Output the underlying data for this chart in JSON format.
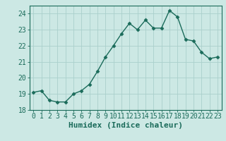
{
  "x": [
    0,
    1,
    2,
    3,
    4,
    5,
    6,
    7,
    8,
    9,
    10,
    11,
    12,
    13,
    14,
    15,
    16,
    17,
    18,
    19,
    20,
    21,
    22,
    23
  ],
  "y": [
    19.1,
    19.2,
    18.6,
    18.5,
    18.5,
    19.0,
    19.2,
    19.6,
    20.4,
    21.3,
    22.0,
    22.75,
    23.4,
    23.0,
    23.6,
    23.1,
    23.1,
    24.2,
    23.8,
    22.4,
    22.3,
    21.6,
    21.2,
    21.3
  ],
  "line_color": "#1a6b5a",
  "marker": "D",
  "markersize": 2.5,
  "linewidth": 1.0,
  "bg_color": "#cce8e4",
  "grid_color": "#aad0cc",
  "xlabel": "Humidex (Indice chaleur)",
  "xlabel_fontsize": 8,
  "tick_fontsize": 7,
  "ylim": [
    18,
    24.5
  ],
  "yticks": [
    18,
    19,
    20,
    21,
    22,
    23,
    24
  ],
  "xticks": [
    0,
    1,
    2,
    3,
    4,
    5,
    6,
    7,
    8,
    9,
    10,
    11,
    12,
    13,
    14,
    15,
    16,
    17,
    18,
    19,
    20,
    21,
    22,
    23
  ]
}
